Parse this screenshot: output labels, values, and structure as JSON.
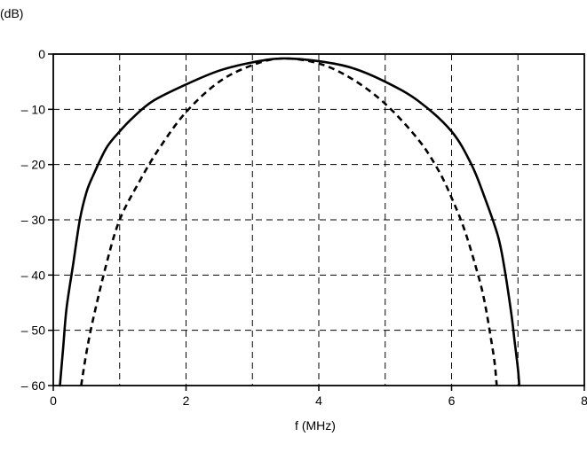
{
  "chart_data": {
    "type": "line",
    "title": "",
    "y_unit_label": "(dB)",
    "xlabel": "f (MHz)",
    "ylabel": "",
    "xlim": [
      0,
      8
    ],
    "ylim": [
      -60,
      0
    ],
    "x_ticks": [
      0,
      2,
      4,
      6,
      8
    ],
    "x_tick_labels": [
      "0",
      "2",
      "4",
      "6",
      "8"
    ],
    "y_ticks": [
      0,
      -10,
      -20,
      -30,
      -40,
      -50,
      -60
    ],
    "y_tick_labels": [
      "0",
      "– 10",
      "– 20",
      "– 30",
      "– 40",
      "– 50",
      "– 60"
    ],
    "x_minor_grid_step": 1,
    "grid": true,
    "grid_style": "dashed",
    "legend": "none",
    "series": [
      {
        "style": "solid",
        "color": "#000000",
        "x": [
          0.1,
          0.15,
          0.2,
          0.3,
          0.4,
          0.5,
          0.6,
          0.8,
          1.0,
          1.2,
          1.5,
          2.0,
          2.5,
          3.0,
          3.45,
          4.0,
          4.5,
          5.0,
          5.5,
          6.0,
          6.3,
          6.5,
          6.7,
          6.8,
          6.9,
          6.95,
          7.0,
          7.02
        ],
        "y": [
          -60,
          -53,
          -46,
          -38,
          -30,
          -25,
          -22,
          -17,
          -14,
          -11.5,
          -8.5,
          -5.5,
          -3,
          -1.5,
          -0.8,
          -1.3,
          -2.5,
          -5,
          -8.5,
          -14,
          -20,
          -26,
          -33,
          -39,
          -47,
          -52,
          -57,
          -60
        ]
      },
      {
        "style": "dashed",
        "color": "#000000",
        "x": [
          0.42,
          0.5,
          0.6,
          0.8,
          1.0,
          1.3,
          1.6,
          2.0,
          2.5,
          3.0,
          3.45,
          4.0,
          4.5,
          5.0,
          5.5,
          5.8,
          6.0,
          6.2,
          6.4,
          6.5,
          6.6,
          6.65,
          6.68
        ],
        "y": [
          -60,
          -54,
          -48,
          -38,
          -30,
          -23,
          -17,
          -10.5,
          -5,
          -2,
          -0.8,
          -1.7,
          -4.5,
          -9,
          -15.5,
          -21,
          -26,
          -32,
          -40,
          -45,
          -52,
          -56,
          -60
        ]
      }
    ]
  }
}
